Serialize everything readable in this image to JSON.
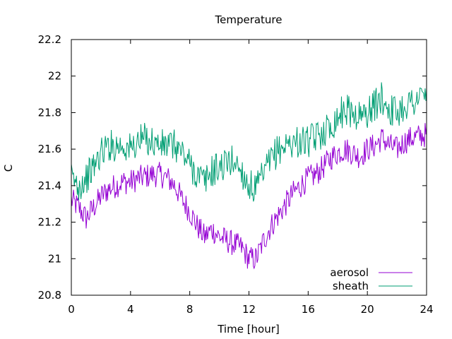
{
  "chart_data": {
    "type": "line",
    "title": "Temperature",
    "xlabel": "Time [hour]",
    "ylabel": "C",
    "xlim": [
      0,
      24
    ],
    "ylim": [
      20.8,
      22.2
    ],
    "xticks": [
      0,
      4,
      8,
      12,
      16,
      20,
      24
    ],
    "yticks": [
      20.8,
      21,
      21.2,
      21.4,
      21.6,
      21.8,
      22,
      22.2
    ],
    "xtick_labels": [
      "0",
      "4",
      "8",
      "12",
      "16",
      "20",
      "24"
    ],
    "ytick_labels": [
      "20.8",
      "21",
      "21.2",
      "21.4",
      "21.6",
      "21.8",
      "22",
      "22.2"
    ],
    "grid": false,
    "legend_position": "bottom-right",
    "series": [
      {
        "name": "aerosol",
        "color": "#9400d3",
        "x": [
          0,
          0.5,
          1,
          1.5,
          2,
          2.5,
          3,
          3.5,
          4,
          4.5,
          5,
          5.5,
          6,
          6.5,
          7,
          7.5,
          8,
          8.5,
          9,
          9.5,
          10,
          10.5,
          11,
          11.5,
          12,
          12.5,
          13,
          13.5,
          14,
          14.5,
          15,
          15.5,
          16,
          16.5,
          17,
          17.5,
          18,
          18.5,
          19,
          19.5,
          20,
          20.5,
          21,
          21.5,
          22,
          22.5,
          23,
          23.5,
          24
        ],
        "y": [
          21.32,
          21.28,
          21.22,
          21.28,
          21.34,
          21.38,
          21.4,
          21.42,
          21.42,
          21.44,
          21.45,
          21.46,
          21.46,
          21.44,
          21.4,
          21.32,
          21.26,
          21.18,
          21.12,
          21.16,
          21.12,
          21.1,
          21.08,
          21.06,
          21.0,
          21.0,
          21.1,
          21.18,
          21.24,
          21.3,
          21.36,
          21.4,
          21.44,
          21.46,
          21.5,
          21.55,
          21.58,
          21.6,
          21.58,
          21.56,
          21.6,
          21.62,
          21.66,
          21.62,
          21.6,
          21.64,
          21.66,
          21.67,
          21.68
        ]
      },
      {
        "name": "sheath",
        "color": "#009e73",
        "x": [
          0,
          0.5,
          1,
          1.5,
          2,
          2.5,
          3,
          3.5,
          4,
          4.5,
          5,
          5.5,
          6,
          6.5,
          7,
          7.5,
          8,
          8.5,
          9,
          9.5,
          10,
          10.5,
          11,
          11.5,
          12,
          12.5,
          13,
          13.5,
          14,
          14.5,
          15,
          15.5,
          16,
          16.5,
          17,
          17.5,
          18,
          18.5,
          19,
          19.5,
          20,
          20.5,
          21,
          21.5,
          22,
          22.5,
          23,
          23.5,
          24
        ],
        "y": [
          21.44,
          21.4,
          21.44,
          21.5,
          21.58,
          21.62,
          21.62,
          21.62,
          21.6,
          21.64,
          21.66,
          21.64,
          21.62,
          21.62,
          21.62,
          21.58,
          21.52,
          21.46,
          21.42,
          21.48,
          21.5,
          21.52,
          21.54,
          21.48,
          21.4,
          21.38,
          21.46,
          21.54,
          21.6,
          21.62,
          21.64,
          21.64,
          21.64,
          21.66,
          21.7,
          21.72,
          21.78,
          21.82,
          21.8,
          21.78,
          21.8,
          21.84,
          21.88,
          21.82,
          21.8,
          21.84,
          21.86,
          21.88,
          21.9
        ]
      }
    ]
  }
}
